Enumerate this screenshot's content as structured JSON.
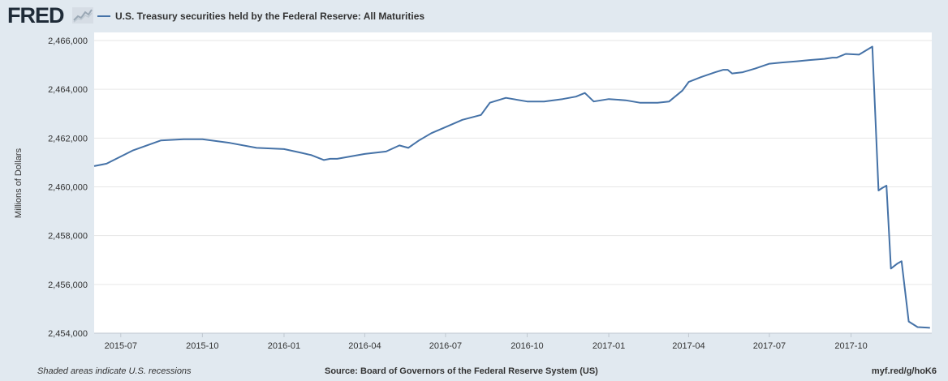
{
  "header": {
    "logo_text": "FRED",
    "logo_icon": "fred-sparkline-icon",
    "legend_label": "U.S. Treasury securities held by the Federal Reserve: All Maturities",
    "series_color": "#4572a7"
  },
  "footer": {
    "recession_note": "Shaded areas indicate U.S. recessions",
    "source": "Source: Board of Governors of the Federal Reserve System (US)",
    "short_url": "myf.red/g/hoK6"
  },
  "chart_data": {
    "type": "line",
    "title": "",
    "xlabel": "",
    "ylabel": "Millions of Dollars",
    "ylim": [
      2454000,
      2466000
    ],
    "xlim": [
      "2015-06-01",
      "2017-12-31"
    ],
    "grid": true,
    "legend": "top-left",
    "y_ticks": [
      "2,454,000",
      "2,456,000",
      "2,458,000",
      "2,460,000",
      "2,462,000",
      "2,464,000",
      "2,466,000"
    ],
    "y_tick_values": [
      2454000,
      2456000,
      2458000,
      2460000,
      2462000,
      2464000,
      2466000
    ],
    "x_ticks": [
      "2015-07",
      "2015-10",
      "2016-01",
      "2016-04",
      "2016-07",
      "2016-10",
      "2017-01",
      "2017-04",
      "2017-07",
      "2017-10"
    ],
    "x_tick_values": [
      "2015-07-01",
      "2015-10-01",
      "2016-01-01",
      "2016-04-01",
      "2016-07-01",
      "2016-10-01",
      "2017-01-01",
      "2017-04-01",
      "2017-07-01",
      "2017-10-01"
    ],
    "series": [
      {
        "name": "U.S. Treasury securities held by the Federal Reserve: All Maturities",
        "color": "#4572a7",
        "x": [
          "2015-06-01",
          "2015-06-15",
          "2015-07-15",
          "2015-08-15",
          "2015-09-10",
          "2015-10-01",
          "2015-11-01",
          "2015-12-01",
          "2016-01-01",
          "2016-01-20",
          "2016-02-01",
          "2016-02-15",
          "2016-02-22",
          "2016-03-01",
          "2016-04-01",
          "2016-04-25",
          "2016-05-10",
          "2016-05-20",
          "2016-06-01",
          "2016-06-15",
          "2016-07-01",
          "2016-07-20",
          "2016-08-10",
          "2016-08-20",
          "2016-09-07",
          "2016-10-01",
          "2016-10-20",
          "2016-11-10",
          "2016-11-25",
          "2016-12-05",
          "2016-12-15",
          "2017-01-01",
          "2017-01-20",
          "2017-02-05",
          "2017-02-25",
          "2017-03-10",
          "2017-03-25",
          "2017-04-01",
          "2017-04-15",
          "2017-05-01",
          "2017-05-10",
          "2017-05-15",
          "2017-05-20",
          "2017-06-01",
          "2017-06-15",
          "2017-07-01",
          "2017-07-15",
          "2017-08-01",
          "2017-08-15",
          "2017-09-01",
          "2017-09-10",
          "2017-09-15",
          "2017-09-25",
          "2017-10-10",
          "2017-10-25",
          "2017-11-01",
          "2017-11-05",
          "2017-11-10",
          "2017-11-15",
          "2017-11-22",
          "2017-11-27",
          "2017-12-05",
          "2017-12-15",
          "2017-12-29"
        ],
        "values": [
          2460850,
          2460950,
          2461500,
          2461900,
          2461950,
          2461950,
          2461800,
          2461600,
          2461550,
          2461400,
          2461300,
          2461100,
          2461150,
          2461150,
          2461350,
          2461450,
          2461700,
          2461600,
          2461900,
          2462200,
          2462450,
          2462750,
          2462950,
          2463450,
          2463650,
          2463500,
          2463500,
          2463600,
          2463700,
          2463850,
          2463500,
          2463600,
          2463550,
          2463450,
          2463450,
          2463500,
          2463950,
          2464300,
          2464500,
          2464700,
          2464800,
          2464800,
          2464650,
          2464700,
          2464850,
          2465050,
          2465100,
          2465150,
          2465200,
          2465250,
          2465300,
          2465300,
          2465450,
          2465420,
          2465750,
          2459850,
          2459950,
          2460050,
          2456650,
          2456850,
          2456950,
          2454480,
          2454250,
          2454220
        ]
      }
    ]
  }
}
